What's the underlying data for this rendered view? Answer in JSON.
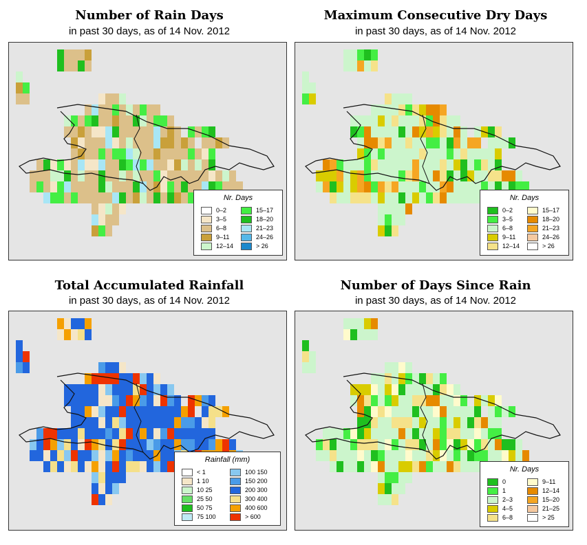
{
  "panels": [
    {
      "title": "Number of Rain Days",
      "subtitle": "in past 30 days, as of  14 Nov. 2012",
      "legend": {
        "title": "Nr. Days",
        "col1": [
          {
            "label": "0–2",
            "color": "#ffffff"
          },
          {
            "label": "3–5",
            "color": "#f5e6c8"
          },
          {
            "label": "6–8",
            "color": "#dcc08a"
          },
          {
            "label": "9–11",
            "color": "#c9a03a"
          },
          {
            "label": "12–14",
            "color": "#ccf5cc"
          }
        ],
        "col2": [
          {
            "label": "15–17",
            "color": "#44ee44"
          },
          {
            "label": "18–20",
            "color": "#1fbf1f"
          },
          {
            "label": "21–23",
            "color": "#a8e6f5"
          },
          {
            "label": "24–26",
            "color": "#55b8e8"
          },
          {
            "label": "> 26",
            "color": "#1a88cc"
          }
        ]
      },
      "map": {
        "base": "#dcc08a",
        "accents": [
          "#c9a03a",
          "#ccf5cc",
          "#44ee44",
          "#1fbf1f",
          "#a8e6f5",
          "#f5e6c8"
        ]
      }
    },
    {
      "title": "Maximum Consecutive Dry Days",
      "subtitle": "in past 30 days, as of  14 Nov. 2012",
      "legend": {
        "title": "Nr. Days",
        "col1": [
          {
            "label": "0–2",
            "color": "#1fbf1f"
          },
          {
            "label": "3–5",
            "color": "#44ee44"
          },
          {
            "label": "6–8",
            "color": "#ccf5cc"
          },
          {
            "label": "9–11",
            "color": "#d9cc00"
          },
          {
            "label": "12–14",
            "color": "#f5e28a"
          }
        ],
        "col2": [
          {
            "label": "15–17",
            "color": "#fffbcc"
          },
          {
            "label": "18–20",
            "color": "#e68a00"
          },
          {
            "label": "21–23",
            "color": "#f5a623"
          },
          {
            "label": "24–26",
            "color": "#f5c9a0"
          },
          {
            "label": "> 26",
            "color": "#ffffff"
          }
        ]
      },
      "map": {
        "base": "#ccf5cc",
        "accents": [
          "#44ee44",
          "#1fbf1f",
          "#d9cc00",
          "#f5e28a",
          "#e68a00",
          "#f5a623"
        ]
      }
    },
    {
      "title": "Total Accumulated Rainfall",
      "subtitle": "in past 30 days, as of  14 Nov. 2012",
      "legend": {
        "title": "Rainfall (mm)",
        "col1": [
          {
            "label": "< 1",
            "color": "#ffffff"
          },
          {
            "label": "1    10",
            "color": "#f5e6c8"
          },
          {
            "label": "10   25",
            "color": "#ccf5cc"
          },
          {
            "label": "25   50",
            "color": "#66e066"
          },
          {
            "label": "50   75",
            "color": "#1fbf1f"
          },
          {
            "label": "75  100",
            "color": "#bfeaf5"
          }
        ],
        "col2": [
          {
            "label": "100  150",
            "color": "#88c8f0"
          },
          {
            "label": "150  200",
            "color": "#4a9be8"
          },
          {
            "label": "200  300",
            "color": "#2266dd"
          },
          {
            "label": "300  400",
            "color": "#f5e08a"
          },
          {
            "label": "400  600",
            "color": "#f5a000"
          },
          {
            "label": "> 600",
            "color": "#ee3300"
          }
        ]
      },
      "map": {
        "base": "#2266dd",
        "accents": [
          "#f5e08a",
          "#f5a000",
          "#88c8f0",
          "#4a9be8",
          "#ee3300",
          "#f5e6c8"
        ]
      }
    },
    {
      "title": "Number of Days Since Rain",
      "subtitle": "in past 30 days, as of  14 Nov. 2012",
      "legend": {
        "title": "Nr. Days",
        "col1": [
          {
            "label": "0",
            "color": "#1fbf1f"
          },
          {
            "label": "1",
            "color": "#44ee44"
          },
          {
            "label": "2–3",
            "color": "#ccf5cc"
          },
          {
            "label": "4–5",
            "color": "#d9cc00"
          },
          {
            "label": "6–8",
            "color": "#f5e28a"
          }
        ],
        "col2": [
          {
            "label": "9–11",
            "color": "#fffbcc"
          },
          {
            "label": "12–14",
            "color": "#e68a00"
          },
          {
            "label": "15–20",
            "color": "#f5a623"
          },
          {
            "label": "21–25",
            "color": "#f5c9a0"
          },
          {
            "label": "> 25",
            "color": "#ffffff"
          }
        ]
      },
      "map": {
        "base": "#ccf5cc",
        "accents": [
          "#1fbf1f",
          "#44ee44",
          "#d9cc00",
          "#f5e28a",
          "#e68a00",
          "#fffbcc"
        ]
      }
    }
  ]
}
